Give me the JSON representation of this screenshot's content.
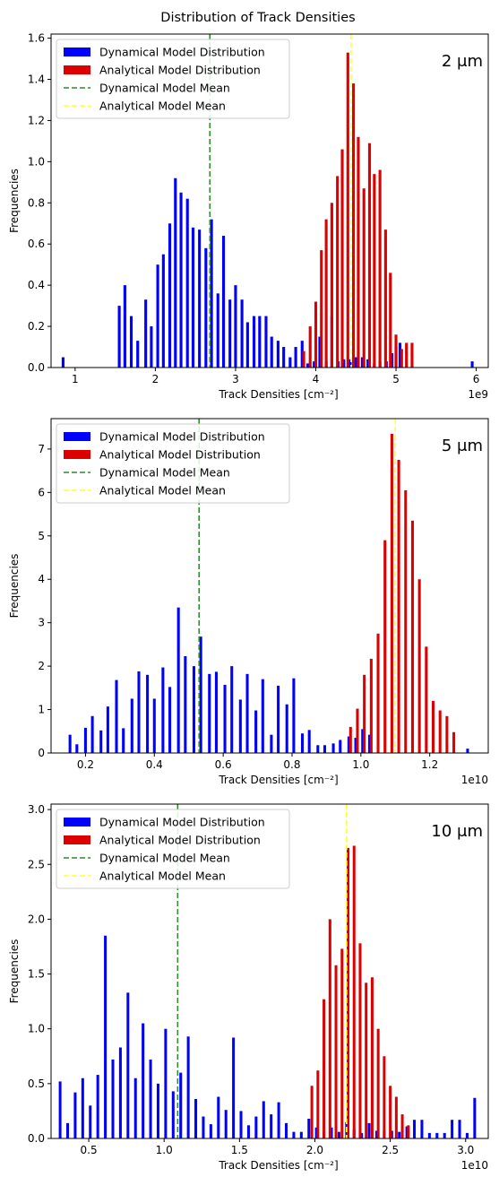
{
  "figure_title": "Distribution of Track Densities",
  "colors": {
    "dynamical": "#0000ff",
    "analytical": "#dd0000",
    "dynamical_mean": "#2e8b2e",
    "analytical_mean": "#ffff33"
  },
  "chart_data": [
    {
      "type": "bar",
      "panel_label": "2 μm",
      "xlabel": "Track Densities [cm⁻²]",
      "ylabel": "Frequencies",
      "x_multiplier": "1e9",
      "xlim": [
        0.7,
        6.15
      ],
      "ylim": [
        0,
        1.62
      ],
      "xticks": [
        1,
        2,
        3,
        4,
        5,
        6
      ],
      "yticks": [
        0.0,
        0.2,
        0.4,
        0.6,
        0.8,
        1.0,
        1.2,
        1.4,
        1.6
      ],
      "ytick_format": 1,
      "bar_width": 0.035,
      "legend": {
        "position": "upper-left",
        "entries": [
          "Dynamical Model Distribution",
          "Analytical Model Distribution",
          "Dynamical Model Mean",
          "Analytical Model Mean"
        ]
      },
      "means": {
        "dynamical": 2.68,
        "analytical": 4.44
      },
      "series": [
        {
          "name": "Dynamical Model Distribution",
          "x": [
            0.85,
            1.55,
            1.62,
            1.7,
            1.78,
            1.88,
            1.95,
            2.03,
            2.1,
            2.18,
            2.25,
            2.32,
            2.4,
            2.47,
            2.55,
            2.63,
            2.7,
            2.78,
            2.85,
            2.93,
            3.0,
            3.08,
            3.15,
            3.23,
            3.3,
            3.38,
            3.45,
            3.53,
            3.6,
            3.68,
            3.75,
            3.83,
            3.9,
            3.98,
            4.05,
            4.13,
            4.2,
            4.28,
            4.35,
            4.43,
            4.5,
            4.58,
            4.65,
            4.73,
            4.8,
            4.88,
            4.95,
            5.0,
            5.05,
            5.95
          ],
          "values": [
            0.05,
            0.3,
            0.4,
            0.25,
            0.13,
            0.33,
            0.2,
            0.5,
            0.55,
            0.7,
            0.92,
            0.85,
            0.82,
            0.68,
            0.67,
            0.58,
            0.72,
            0.36,
            0.64,
            0.33,
            0.4,
            0.33,
            0.22,
            0.25,
            0.25,
            0.25,
            0.15,
            0.13,
            0.1,
            0.05,
            0.1,
            0.13,
            0.02,
            0.03,
            0.15,
            0.03,
            0.25,
            0.03,
            0.04,
            0.04,
            0.05,
            0.05,
            0.04,
            0.02,
            0.03,
            0.03,
            0.07,
            0.1,
            0.12,
            0.03
          ]
        },
        {
          "name": "Analytical Model Distribution",
          "x": [
            3.85,
            3.93,
            4.0,
            4.07,
            4.13,
            4.2,
            4.27,
            4.33,
            4.4,
            4.47,
            4.53,
            4.6,
            4.67,
            4.73,
            4.8,
            4.87,
            4.93,
            5.0,
            5.07,
            5.13,
            5.2
          ],
          "values": [
            0.08,
            0.2,
            0.32,
            0.57,
            0.72,
            0.8,
            0.93,
            1.06,
            1.53,
            1.38,
            1.12,
            0.87,
            1.09,
            0.94,
            0.96,
            0.67,
            0.46,
            0.16,
            0.09,
            0.12,
            0.12
          ]
        }
      ]
    },
    {
      "type": "bar",
      "panel_label": "5 μm",
      "xlabel": "Track Densities [cm⁻²]",
      "ylabel": "Frequencies",
      "x_multiplier": "1e10",
      "xlim": [
        0.1,
        1.37
      ],
      "ylim": [
        0,
        7.7
      ],
      "xticks": [
        0.2,
        0.4,
        0.6,
        0.8,
        1.0,
        1.2
      ],
      "yticks": [
        0,
        1,
        2,
        3,
        4,
        5,
        6,
        7
      ],
      "ytick_format": 0,
      "bar_width": 0.008,
      "legend": {
        "position": "upper-left",
        "entries": [
          "Dynamical Model Distribution",
          "Analytical Model Distribution",
          "Dynamical Model Mean",
          "Analytical Model Mean"
        ]
      },
      "means": {
        "dynamical": 0.53,
        "analytical": 1.1
      },
      "series": [
        {
          "name": "Dynamical Model Distribution",
          "x": [
            0.155,
            0.175,
            0.2,
            0.22,
            0.245,
            0.265,
            0.29,
            0.31,
            0.335,
            0.355,
            0.38,
            0.4,
            0.425,
            0.445,
            0.47,
            0.49,
            0.515,
            0.535,
            0.56,
            0.58,
            0.605,
            0.625,
            0.65,
            0.67,
            0.695,
            0.715,
            0.74,
            0.76,
            0.785,
            0.805,
            0.83,
            0.85,
            0.875,
            0.895,
            0.92,
            0.94,
            0.965,
            0.985,
            1.005,
            1.025,
            1.31
          ],
          "values": [
            0.42,
            0.2,
            0.58,
            0.85,
            0.52,
            1.07,
            1.68,
            0.57,
            1.25,
            1.88,
            1.8,
            1.25,
            1.97,
            1.52,
            3.35,
            2.23,
            2.0,
            2.68,
            1.82,
            1.87,
            1.57,
            2.0,
            1.23,
            1.82,
            0.98,
            1.7,
            0.42,
            1.55,
            1.12,
            1.72,
            0.45,
            0.53,
            0.18,
            0.18,
            0.22,
            0.3,
            0.38,
            0.35,
            0.55,
            0.42,
            0.1
          ]
        },
        {
          "name": "Analytical Model Distribution",
          "x": [
            0.97,
            0.99,
            1.01,
            1.03,
            1.05,
            1.07,
            1.09,
            1.11,
            1.13,
            1.15,
            1.17,
            1.19,
            1.21,
            1.23,
            1.25,
            1.27
          ],
          "values": [
            0.6,
            1.02,
            1.8,
            2.17,
            2.75,
            4.9,
            7.35,
            6.75,
            6.05,
            5.35,
            4.0,
            2.45,
            1.2,
            0.98,
            0.85,
            0.48
          ]
        }
      ]
    },
    {
      "type": "bar",
      "panel_label": "10 μm",
      "xlabel": "Track Densities [cm⁻²]",
      "ylabel": "Frequencies",
      "x_multiplier": "1e10",
      "xlim": [
        0.25,
        3.15
      ],
      "ylim": [
        0,
        3.05
      ],
      "xticks": [
        0.5,
        1.0,
        1.5,
        2.0,
        2.5,
        3.0
      ],
      "yticks": [
        0.0,
        0.5,
        1.0,
        1.5,
        2.0,
        2.5,
        3.0
      ],
      "ytick_format": 1,
      "bar_width": 0.018,
      "legend": {
        "position": "upper-left",
        "entries": [
          "Dynamical Model Distribution",
          "Analytical Model Distribution",
          "Dynamical Model Mean",
          "Analytical Model Mean"
        ]
      },
      "means": {
        "dynamical": 1.09,
        "analytical": 2.21
      },
      "series": [
        {
          "name": "Dynamical Model Distribution",
          "x": [
            0.31,
            0.36,
            0.41,
            0.46,
            0.51,
            0.56,
            0.61,
            0.66,
            0.71,
            0.76,
            0.81,
            0.86,
            0.91,
            0.96,
            1.01,
            1.06,
            1.11,
            1.16,
            1.21,
            1.26,
            1.31,
            1.36,
            1.41,
            1.46,
            1.51,
            1.56,
            1.61,
            1.66,
            1.71,
            1.76,
            1.81,
            1.86,
            1.91,
            1.96,
            2.01,
            2.06,
            2.11,
            2.16,
            2.21,
            2.26,
            2.31,
            2.36,
            2.41,
            2.46,
            2.51,
            2.56,
            2.61,
            2.66,
            2.71,
            2.76,
            2.81,
            2.86,
            2.91,
            2.96,
            3.01,
            3.06
          ],
          "values": [
            0.52,
            0.14,
            0.42,
            0.55,
            0.3,
            0.58,
            1.85,
            0.72,
            0.83,
            1.33,
            0.55,
            1.05,
            0.72,
            0.5,
            1.0,
            0.43,
            0.6,
            0.93,
            0.36,
            0.2,
            0.13,
            0.38,
            0.26,
            0.92,
            0.25,
            0.12,
            0.2,
            0.34,
            0.22,
            0.33,
            0.14,
            0.06,
            0.06,
            0.18,
            0.1,
            0.06,
            0.1,
            0.06,
            0.15,
            0.08,
            0.05,
            0.14,
            0.07,
            0.07,
            0.07,
            0.06,
            0.11,
            0.17,
            0.17,
            0.05,
            0.05,
            0.05,
            0.17,
            0.17,
            0.05,
            0.37
          ]
        },
        {
          "name": "Analytical Model Distribution",
          "x": [
            1.98,
            2.02,
            2.06,
            2.1,
            2.14,
            2.18,
            2.22,
            2.26,
            2.3,
            2.34,
            2.38,
            2.42,
            2.46,
            2.5,
            2.54,
            2.58,
            2.62
          ],
          "values": [
            0.48,
            0.62,
            1.27,
            2.0,
            1.58,
            1.73,
            2.65,
            2.67,
            1.78,
            1.42,
            1.47,
            1.0,
            0.75,
            0.48,
            0.38,
            0.22,
            0.12
          ]
        }
      ]
    }
  ]
}
